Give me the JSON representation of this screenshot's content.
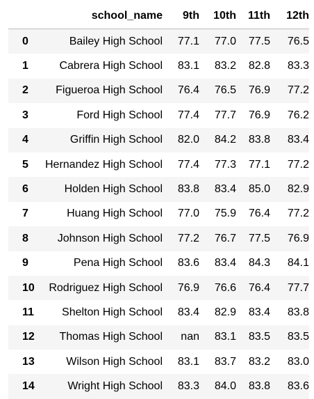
{
  "table": {
    "columns": [
      "",
      "school_name",
      "9th",
      "10th",
      "11th",
      "12th"
    ],
    "rows": [
      {
        "index": "0",
        "school_name": "Bailey High School",
        "9th": "77.1",
        "10th": "77.0",
        "11th": "77.5",
        "12th": "76.5"
      },
      {
        "index": "1",
        "school_name": "Cabrera High School",
        "9th": "83.1",
        "10th": "83.2",
        "11th": "82.8",
        "12th": "83.3"
      },
      {
        "index": "2",
        "school_name": "Figueroa High School",
        "9th": "76.4",
        "10th": "76.5",
        "11th": "76.9",
        "12th": "77.2"
      },
      {
        "index": "3",
        "school_name": "Ford High School",
        "9th": "77.4",
        "10th": "77.7",
        "11th": "76.9",
        "12th": "76.2"
      },
      {
        "index": "4",
        "school_name": "Griffin High School",
        "9th": "82.0",
        "10th": "84.2",
        "11th": "83.8",
        "12th": "83.4"
      },
      {
        "index": "5",
        "school_name": "Hernandez High School",
        "9th": "77.4",
        "10th": "77.3",
        "11th": "77.1",
        "12th": "77.2"
      },
      {
        "index": "6",
        "school_name": "Holden High School",
        "9th": "83.8",
        "10th": "83.4",
        "11th": "85.0",
        "12th": "82.9"
      },
      {
        "index": "7",
        "school_name": "Huang High School",
        "9th": "77.0",
        "10th": "75.9",
        "11th": "76.4",
        "12th": "77.2"
      },
      {
        "index": "8",
        "school_name": "Johnson High School",
        "9th": "77.2",
        "10th": "76.7",
        "11th": "77.5",
        "12th": "76.9"
      },
      {
        "index": "9",
        "school_name": "Pena High School",
        "9th": "83.6",
        "10th": "83.4",
        "11th": "84.3",
        "12th": "84.1"
      },
      {
        "index": "10",
        "school_name": "Rodriguez High School",
        "9th": "76.9",
        "10th": "76.6",
        "11th": "76.4",
        "12th": "77.7"
      },
      {
        "index": "11",
        "school_name": "Shelton High School",
        "9th": "83.4",
        "10th": "82.9",
        "11th": "83.4",
        "12th": "83.8"
      },
      {
        "index": "12",
        "school_name": "Thomas High School",
        "9th": "nan",
        "10th": "83.1",
        "11th": "83.5",
        "12th": "83.5"
      },
      {
        "index": "13",
        "school_name": "Wilson High School",
        "9th": "83.1",
        "10th": "83.7",
        "11th": "83.2",
        "12th": "83.0"
      },
      {
        "index": "14",
        "school_name": "Wright High School",
        "9th": "83.3",
        "10th": "84.0",
        "11th": "83.8",
        "12th": "83.6"
      }
    ]
  }
}
